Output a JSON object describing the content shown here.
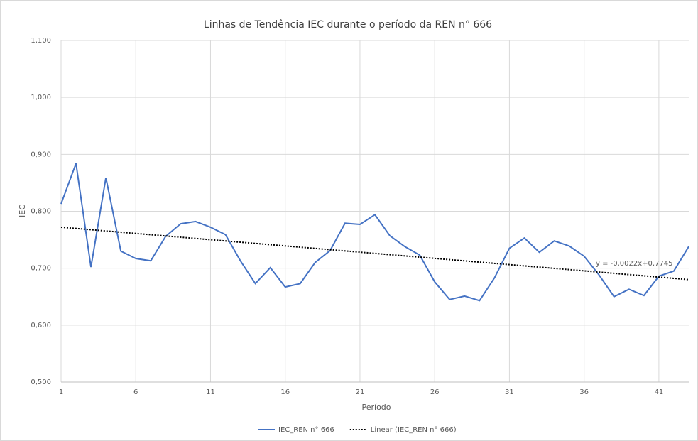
{
  "chart_data": {
    "type": "line",
    "title": "Linhas de Tendência IEC durante o período da REN n° 666",
    "xlabel": "Período",
    "ylabel": "IEC",
    "x": [
      1,
      2,
      3,
      4,
      5,
      6,
      7,
      8,
      9,
      10,
      11,
      12,
      13,
      14,
      15,
      16,
      17,
      18,
      19,
      20,
      21,
      22,
      23,
      24,
      25,
      26,
      27,
      28,
      29,
      30,
      31,
      32,
      33,
      34,
      35,
      36,
      37,
      38,
      39,
      40,
      41,
      42,
      43
    ],
    "series": [
      {
        "name": "IEC_REN n° 666",
        "color": "#4472c4",
        "values": [
          0.813,
          0.884,
          0.702,
          0.859,
          0.73,
          0.717,
          0.713,
          0.756,
          0.778,
          0.782,
          0.772,
          0.759,
          0.713,
          0.673,
          0.701,
          0.667,
          0.673,
          0.71,
          0.731,
          0.779,
          0.777,
          0.794,
          0.757,
          0.738,
          0.723,
          0.676,
          0.645,
          0.651,
          0.643,
          0.683,
          0.735,
          0.753,
          0.728,
          0.748,
          0.739,
          0.721,
          0.688,
          0.65,
          0.663,
          0.652,
          0.686,
          0.695,
          0.738
        ]
      }
    ],
    "trendline": {
      "name": "Linear (IEC_REN n° 666)",
      "color": "#000000",
      "x": [
        1,
        43
      ],
      "values": [
        0.772,
        0.68
      ],
      "label": "y = -0,0022x+0,7745"
    },
    "xlim": [
      1,
      43
    ],
    "xticks": [
      1,
      6,
      11,
      16,
      21,
      26,
      31,
      36,
      41
    ],
    "ylim": [
      0.5,
      1.1
    ],
    "yticks": [
      {
        "value": 0.5,
        "label": "0,500"
      },
      {
        "value": 0.6,
        "label": "0,600"
      },
      {
        "value": 0.7,
        "label": "0,700"
      },
      {
        "value": 0.8,
        "label": "0,800"
      },
      {
        "value": 0.9,
        "label": "0,900"
      },
      {
        "value": 1.0,
        "label": "1,000"
      },
      {
        "value": 1.1,
        "label": "1,100"
      }
    ],
    "grid": true,
    "legend": "bottom"
  }
}
